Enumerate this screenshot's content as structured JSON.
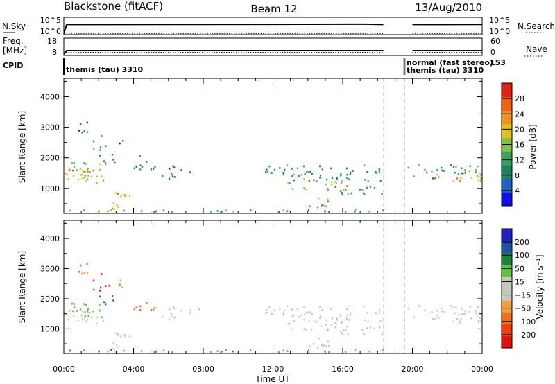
{
  "header": {
    "station": "Blackstone (fitACF)",
    "beam": "Beam 12",
    "date": "13/Aug/2010"
  },
  "left_labels": {
    "nsky": "N.Sky",
    "freq_line1": "Freq.",
    "freq_line2": "[MHz]",
    "cpid": "CPID"
  },
  "right_labels": {
    "nsearch": "N.Search",
    "nave": "Nave",
    "cpid_value": "153"
  },
  "panel_ticks": {
    "nsky_left": [
      "10^5",
      "10^0"
    ],
    "nsearch_right": [
      "10^5",
      "10^0"
    ],
    "freq_left": [
      "18",
      "8"
    ],
    "nave_right": [
      "60",
      "0"
    ]
  },
  "cpid_labels": {
    "first": "themis (tau) 3310",
    "second_line1": "normal (fast stereo)",
    "second_line2": "themis (tau) 3310"
  },
  "colors": {
    "power": [
      "#1010e0",
      "#2060c0",
      "#208060",
      "#40a060",
      "#80c040",
      "#e0c020",
      "#f09020",
      "#f06010",
      "#e02010"
    ],
    "velocity": [
      "#e01010",
      "#f04010",
      "#f07020",
      "#f0a040",
      "#c8c8c0",
      "#c8c8c0",
      "#60c040",
      "#208040",
      "#2050a0",
      "#2020c0"
    ],
    "gap_line": "#bbbbbb",
    "ground_scatter": "#c8c8c0"
  },
  "chart_data": [
    {
      "type": "line",
      "title": "N.Sky / N.Search",
      "x": [
        "00:00",
        "00:10",
        "17:20",
        "18:20",
        "19:30",
        "20:00",
        "24:00"
      ],
      "series": [
        {
          "name": "N.Sky",
          "values": [
            1,
            1000,
            1300,
            1000,
            null,
            1000,
            1100
          ]
        },
        {
          "name": "N.Search",
          "values": [
            1,
            1,
            1,
            1,
            null,
            1,
            1
          ]
        }
      ]
    },
    {
      "type": "line",
      "title": "Freq. / Nave",
      "x": [
        "00:00",
        "00:10",
        "12:00",
        "18:20",
        "19:30",
        "20:00",
        "24:00"
      ],
      "series": [
        {
          "name": "Freq. [MHz]",
          "values": [
            8,
            10.4,
            10.4,
            10.4,
            null,
            10.4,
            10.4
          ]
        },
        {
          "name": "Nave",
          "values": [
            0,
            6,
            6,
            6,
            null,
            6,
            6
          ]
        }
      ]
    },
    {
      "type": "heatmap",
      "title": "Power",
      "xlabel": "",
      "ylabel": "Slant Range [km]",
      "xlim": [
        0,
        24
      ],
      "ylim": [
        180,
        4600
      ],
      "x_ticks": [
        "00:00",
        "04:00",
        "08:00",
        "12:00",
        "16:00",
        "20:00",
        "00:00"
      ],
      "y_ticks": [
        1000,
        2000,
        3000,
        4000
      ],
      "colorbar": {
        "label": "Power [dB]",
        "ticks": [
          4,
          8,
          12,
          16,
          20,
          24,
          28
        ],
        "range": [
          0,
          32
        ]
      },
      "data_gap_hours": [
        18.35,
        19.55
      ],
      "scatter_regions": [
        {
          "t": [
            0.0,
            2.3
          ],
          "r": [
            1150,
            1650
          ],
          "value": 22
        },
        {
          "t": [
            0.4,
            2.4
          ],
          "r": [
            1350,
            1850
          ],
          "value": 14
        },
        {
          "t": [
            0.4,
            1.4
          ],
          "r": [
            2800,
            3200
          ],
          "value": 6
        },
        {
          "t": [
            1.6,
            2.6
          ],
          "r": [
            2200,
            2700
          ],
          "value": 12
        },
        {
          "t": [
            2.0,
            2.9
          ],
          "r": [
            1700,
            2100
          ],
          "value": 8
        },
        {
          "t": [
            2.5,
            3.8
          ],
          "r": [
            300,
            900
          ],
          "value": 22
        },
        {
          "t": [
            3.0,
            3.8
          ],
          "r": [
            2300,
            2600
          ],
          "value": 6
        },
        {
          "t": [
            4.0,
            5.2
          ],
          "r": [
            1600,
            2050
          ],
          "value": 6
        },
        {
          "t": [
            5.5,
            7.8
          ],
          "r": [
            1300,
            1750
          ],
          "value": 6
        },
        {
          "t": [
            11.3,
            18.3
          ],
          "r": [
            1200,
            1750
          ],
          "value": 10
        },
        {
          "t": [
            12.8,
            16.3
          ],
          "r": [
            900,
            1200
          ],
          "value": 16
        },
        {
          "t": [
            15.3,
            18.3
          ],
          "r": [
            750,
            1100
          ],
          "value": 10
        },
        {
          "t": [
            14.0,
            15.2
          ],
          "r": [
            300,
            700
          ],
          "value": 16
        },
        {
          "t": [
            19.7,
            24.0
          ],
          "r": [
            1300,
            1750
          ],
          "value": 12
        },
        {
          "t": [
            21.3,
            24.0
          ],
          "r": [
            1150,
            1450
          ],
          "value": 22
        },
        {
          "t": [
            0.0,
            18.3
          ],
          "r": [
            200,
            300
          ],
          "value": 12
        }
      ]
    },
    {
      "type": "heatmap",
      "title": "Velocity",
      "xlabel": "Time UT",
      "ylabel": "Slant Range [km]",
      "xlim": [
        0,
        24
      ],
      "ylim": [
        180,
        4600
      ],
      "x_ticks": [
        "00:00",
        "04:00",
        "08:00",
        "12:00",
        "16:00",
        "20:00",
        "00:00"
      ],
      "y_ticks": [
        1000,
        2000,
        3000,
        4000
      ],
      "colorbar": {
        "label": "Velocity [m s⁻¹]",
        "ticks": [
          "200",
          "100",
          "50",
          "15",
          "−15",
          "−50",
          "−100",
          "−200"
        ],
        "range": [
          -250,
          250
        ]
      },
      "data_gap_hours": [
        18.35,
        19.55
      ],
      "scatter_regions": [
        {
          "t": [
            0.0,
            2.3
          ],
          "r": [
            1150,
            1650
          ],
          "value": 0
        },
        {
          "t": [
            0.4,
            2.4
          ],
          "r": [
            1350,
            1850
          ],
          "value": 30
        },
        {
          "t": [
            0.4,
            1.4
          ],
          "r": [
            2800,
            3200
          ],
          "value": -60
        },
        {
          "t": [
            1.6,
            2.6
          ],
          "r": [
            2200,
            2800
          ],
          "value": -230
        },
        {
          "t": [
            2.0,
            2.9
          ],
          "r": [
            1700,
            2100
          ],
          "value": 60
        },
        {
          "t": [
            2.5,
            3.8
          ],
          "r": [
            300,
            900
          ],
          "value": 0
        },
        {
          "t": [
            3.0,
            3.8
          ],
          "r": [
            2300,
            2600
          ],
          "value": -40
        },
        {
          "t": [
            4.0,
            5.2
          ],
          "r": [
            1600,
            2050
          ],
          "value": -80
        },
        {
          "t": [
            5.5,
            7.8
          ],
          "r": [
            1300,
            1750
          ],
          "value": 0
        },
        {
          "t": [
            11.3,
            18.3
          ],
          "r": [
            1200,
            1750
          ],
          "value": 0
        },
        {
          "t": [
            12.8,
            16.3
          ],
          "r": [
            900,
            1200
          ],
          "value": 0
        },
        {
          "t": [
            15.3,
            18.3
          ],
          "r": [
            750,
            1100
          ],
          "value": 0
        },
        {
          "t": [
            14.0,
            15.2
          ],
          "r": [
            300,
            700
          ],
          "value": 0
        },
        {
          "t": [
            19.7,
            24.0
          ],
          "r": [
            1300,
            1750
          ],
          "value": 0
        },
        {
          "t": [
            21.3,
            24.0
          ],
          "r": [
            1150,
            1450
          ],
          "value": 0
        },
        {
          "t": [
            0.0,
            18.3
          ],
          "r": [
            200,
            300
          ],
          "value": 40
        }
      ]
    }
  ]
}
